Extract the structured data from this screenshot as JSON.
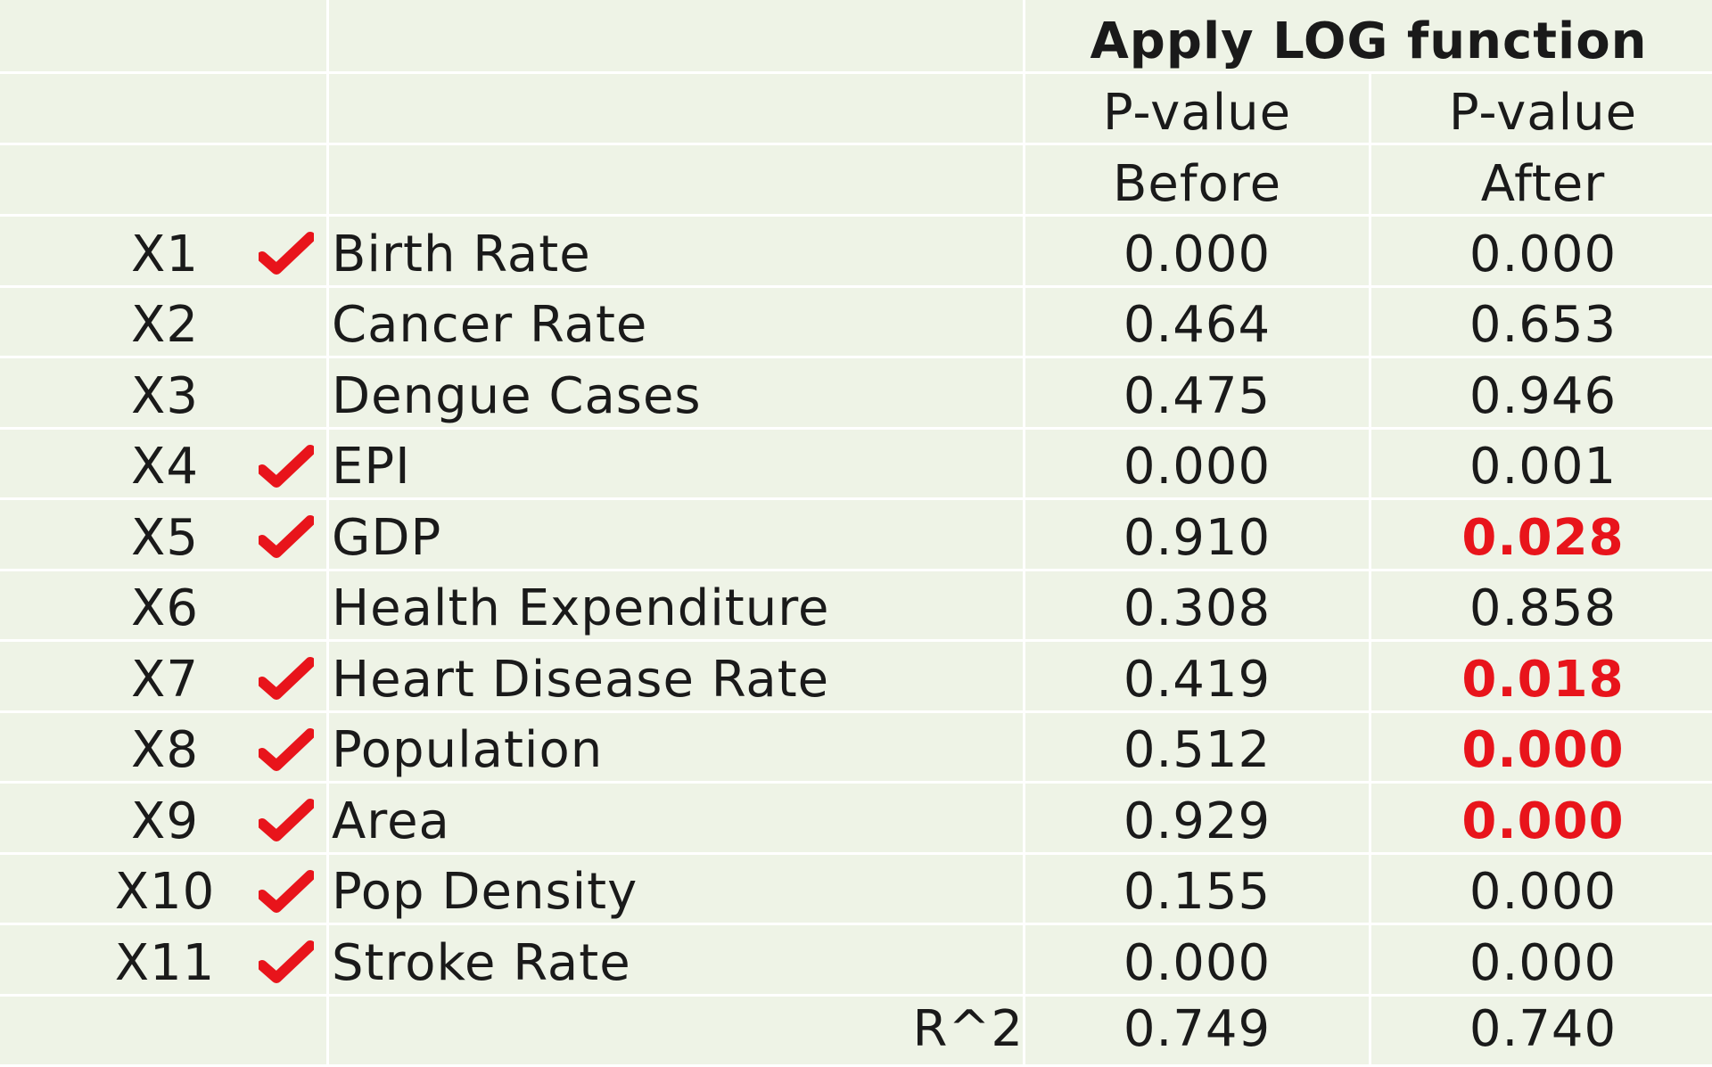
{
  "header": {
    "title": "Apply LOG function",
    "col_before_line1": "P-value",
    "col_before_line2": "Before",
    "col_after_line1": "P-value",
    "col_after_line2": "After"
  },
  "rows": [
    {
      "id": "X1",
      "checked": true,
      "variable": "Birth Rate",
      "before": "0.000",
      "after": "0.000",
      "after_highlight": false
    },
    {
      "id": "X2",
      "checked": false,
      "variable": "Cancer Rate",
      "before": "0.464",
      "after": "0.653",
      "after_highlight": false
    },
    {
      "id": "X3",
      "checked": false,
      "variable": "Dengue Cases",
      "before": "0.475",
      "after": "0.946",
      "after_highlight": false
    },
    {
      "id": "X4",
      "checked": true,
      "variable": "EPI",
      "before": "0.000",
      "after": "0.001",
      "after_highlight": false
    },
    {
      "id": "X5",
      "checked": true,
      "variable": "GDP",
      "before": "0.910",
      "after": "0.028",
      "after_highlight": true
    },
    {
      "id": "X6",
      "checked": false,
      "variable": "Health Expenditure",
      "before": "0.308",
      "after": "0.858",
      "after_highlight": false
    },
    {
      "id": "X7",
      "checked": true,
      "variable": "Heart Disease Rate",
      "before": "0.419",
      "after": "0.018",
      "after_highlight": true
    },
    {
      "id": "X8",
      "checked": true,
      "variable": "Population",
      "before": "0.512",
      "after": "0.000",
      "after_highlight": true
    },
    {
      "id": "X9",
      "checked": true,
      "variable": "Area",
      "before": "0.929",
      "after": "0.000",
      "after_highlight": true
    },
    {
      "id": "X10",
      "checked": true,
      "variable": "Pop Density",
      "before": "0.155",
      "after": "0.000",
      "after_highlight": false
    },
    {
      "id": "X11",
      "checked": true,
      "variable": "Stroke Rate",
      "before": "0.000",
      "after": "0.000",
      "after_highlight": false
    }
  ],
  "footer": {
    "label": "R^2",
    "before": "0.749",
    "after": "0.740"
  },
  "colors": {
    "background": "#eef3e6",
    "gridline": "#ffffff",
    "check": "#e8141b",
    "highlight": "#e8141b"
  },
  "icons": {
    "check": "check-mark-icon"
  }
}
